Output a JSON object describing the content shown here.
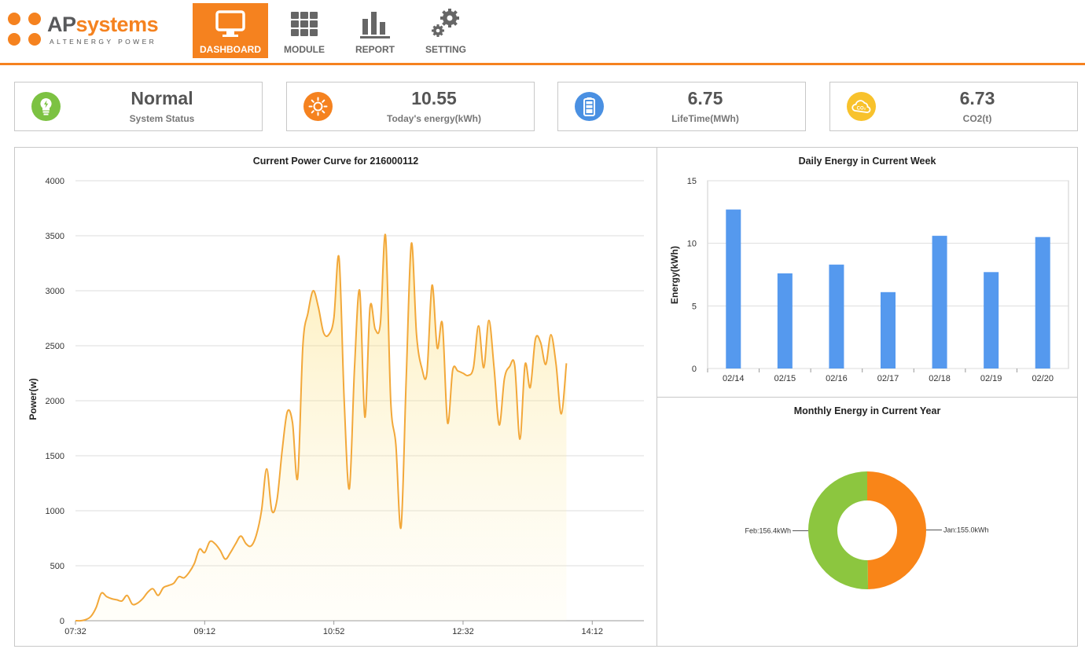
{
  "brand": {
    "name_ap": "AP",
    "name_systems": "systems",
    "tagline": "ALTENERGY POWER"
  },
  "nav": [
    {
      "label": "DASHBOARD",
      "active": true,
      "icon": "monitor-icon"
    },
    {
      "label": "MODULE",
      "active": false,
      "icon": "grid-icon"
    },
    {
      "label": "REPORT",
      "active": false,
      "icon": "bar-chart-icon"
    },
    {
      "label": "SETTING",
      "active": false,
      "icon": "gears-icon"
    }
  ],
  "stats": [
    {
      "value": "Normal",
      "label": "System Status",
      "icon": "lightbulb-icon",
      "color": "#7cc242"
    },
    {
      "value": "10.55",
      "label": "Today's energy(kWh)",
      "icon": "sun-icon",
      "color": "#f5821f"
    },
    {
      "value": "6.75",
      "label": "LifeTime(MWh)",
      "icon": "battery-icon",
      "color": "#4a90e2"
    },
    {
      "value": "6.73",
      "label": "CO2(t)",
      "icon": "co2-cloud-icon",
      "color": "#f8c22c"
    }
  ],
  "colors": {
    "accent": "#f5821f",
    "line": "#f2a83a",
    "bar": "#5599ee",
    "donut_jan": "#f98518",
    "donut_feb": "#8cc63f"
  },
  "chart_data": [
    {
      "type": "area",
      "title": "Current Power Curve for 216000112",
      "xlabel": "",
      "ylabel": "Power(w)",
      "ylim": [
        0,
        4000
      ],
      "yticks": [
        "0",
        "500",
        "1000",
        "1500",
        "2000",
        "2500",
        "3000",
        "3500",
        "4000"
      ],
      "xlim": [
        "07:32",
        "14:52"
      ],
      "xticks": [
        "07:32",
        "09:12",
        "10:52",
        "12:32",
        "14:12"
      ],
      "grid": true,
      "points": [
        [
          "07:32",
          0
        ],
        [
          "07:36",
          0
        ],
        [
          "07:40",
          10
        ],
        [
          "07:44",
          40
        ],
        [
          "07:48",
          120
        ],
        [
          "07:52",
          250
        ],
        [
          "07:56",
          220
        ],
        [
          "08:00",
          200
        ],
        [
          "08:04",
          190
        ],
        [
          "08:08",
          180
        ],
        [
          "08:12",
          230
        ],
        [
          "08:16",
          150
        ],
        [
          "08:20",
          160
        ],
        [
          "08:24",
          200
        ],
        [
          "08:28",
          260
        ],
        [
          "08:32",
          290
        ],
        [
          "08:36",
          230
        ],
        [
          "08:40",
          300
        ],
        [
          "08:44",
          320
        ],
        [
          "08:48",
          340
        ],
        [
          "08:52",
          400
        ],
        [
          "08:56",
          390
        ],
        [
          "09:00",
          440
        ],
        [
          "09:04",
          520
        ],
        [
          "09:08",
          650
        ],
        [
          "09:12",
          620
        ],
        [
          "09:16",
          720
        ],
        [
          "09:20",
          700
        ],
        [
          "09:24",
          640
        ],
        [
          "09:28",
          560
        ],
        [
          "09:32",
          620
        ],
        [
          "09:36",
          700
        ],
        [
          "09:40",
          770
        ],
        [
          "09:44",
          700
        ],
        [
          "09:48",
          680
        ],
        [
          "09:52",
          780
        ],
        [
          "09:56",
          1000
        ],
        [
          "10:00",
          1380
        ],
        [
          "10:04",
          1000
        ],
        [
          "10:08",
          1100
        ],
        [
          "10:12",
          1550
        ],
        [
          "10:16",
          1900
        ],
        [
          "10:20",
          1800
        ],
        [
          "10:24",
          1300
        ],
        [
          "10:28",
          2500
        ],
        [
          "10:32",
          2800
        ],
        [
          "10:36",
          3000
        ],
        [
          "10:40",
          2850
        ],
        [
          "10:44",
          2620
        ],
        [
          "10:48",
          2600
        ],
        [
          "10:52",
          2750
        ],
        [
          "10:56",
          3300
        ],
        [
          "11:00",
          2000
        ],
        [
          "11:04",
          1200
        ],
        [
          "11:08",
          2300
        ],
        [
          "11:12",
          3000
        ],
        [
          "11:16",
          1850
        ],
        [
          "11:20",
          2850
        ],
        [
          "11:24",
          2650
        ],
        [
          "11:28",
          2700
        ],
        [
          "11:32",
          3500
        ],
        [
          "11:36",
          2000
        ],
        [
          "11:40",
          1600
        ],
        [
          "11:44",
          850
        ],
        [
          "11:48",
          2200
        ],
        [
          "11:52",
          3430
        ],
        [
          "11:56",
          2600
        ],
        [
          "12:00",
          2300
        ],
        [
          "12:04",
          2250
        ],
        [
          "12:08",
          3050
        ],
        [
          "12:12",
          2480
        ],
        [
          "12:16",
          2700
        ],
        [
          "12:20",
          1800
        ],
        [
          "12:24",
          2280
        ],
        [
          "12:28",
          2270
        ],
        [
          "12:32",
          2250
        ],
        [
          "12:36",
          2230
        ],
        [
          "12:40",
          2300
        ],
        [
          "12:44",
          2680
        ],
        [
          "12:48",
          2300
        ],
        [
          "12:52",
          2730
        ],
        [
          "12:56",
          2300
        ],
        [
          "13:00",
          1780
        ],
        [
          "13:04",
          2200
        ],
        [
          "13:08",
          2310
        ],
        [
          "13:12",
          2320
        ],
        [
          "13:16",
          1650
        ],
        [
          "13:20",
          2330
        ],
        [
          "13:24",
          2120
        ],
        [
          "13:28",
          2560
        ],
        [
          "13:32",
          2530
        ],
        [
          "13:36",
          2330
        ],
        [
          "13:40",
          2600
        ],
        [
          "13:44",
          2330
        ],
        [
          "13:48",
          1880
        ],
        [
          "13:52",
          2340
        ]
      ]
    },
    {
      "type": "bar",
      "title": "Daily Energy in Current Week",
      "xlabel": "",
      "ylabel": "Energy(kWh)",
      "ylim": [
        0,
        15
      ],
      "yticks": [
        "0",
        "5",
        "10",
        "15"
      ],
      "categories": [
        "02/14",
        "02/15",
        "02/16",
        "02/17",
        "02/18",
        "02/19",
        "02/20"
      ],
      "values": [
        12.7,
        7.6,
        8.3,
        6.1,
        10.6,
        7.7,
        10.5
      ],
      "grid": true
    },
    {
      "type": "pie",
      "title": "Monthly Energy in Current Year",
      "slices": [
        {
          "label": "Jan:155.0kWh",
          "value": 155.0
        },
        {
          "label": "Feb:156.4kWh",
          "value": 156.4
        }
      ]
    }
  ]
}
